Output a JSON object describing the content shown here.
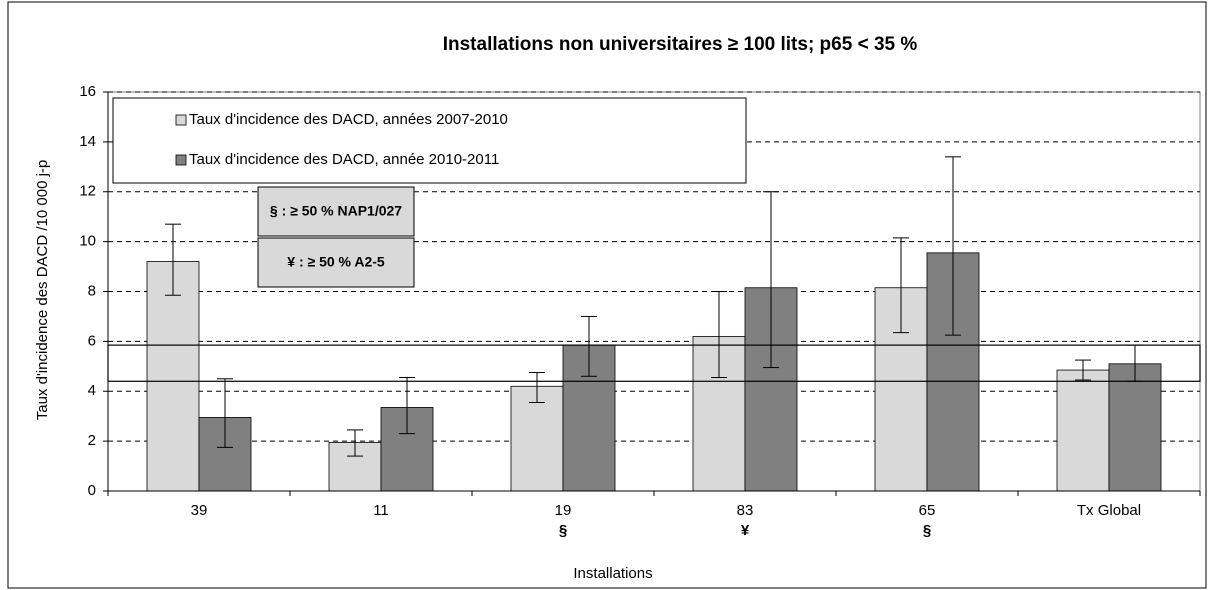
{
  "chart_data": {
    "type": "bar",
    "title": "Installations non universitaires ≥ 100 lits; p65 < 35 %",
    "x_label": "Installations",
    "y_label": "Taux d'incidence des DACD /10 000 j-p",
    "categories": [
      "39",
      "11",
      "19",
      "83",
      "65",
      "Tx Global"
    ],
    "category_notes": [
      null,
      null,
      "§",
      "¥",
      "§",
      null
    ],
    "series": [
      {
        "name": "Taux d'incidence des DACD, années 2007-2010",
        "color": "#d9d9d9",
        "values": [
          9.2,
          1.95,
          4.2,
          6.2,
          8.15,
          4.85
        ],
        "lower": [
          7.85,
          1.4,
          3.55,
          4.55,
          6.35,
          4.45
        ],
        "upper": [
          10.7,
          2.45,
          4.75,
          8.0,
          10.15,
          5.25
        ]
      },
      {
        "name": "Taux d'incidence des DACD, année 2010-2011",
        "color": "#808080",
        "values": [
          2.95,
          3.35,
          5.85,
          8.15,
          9.55,
          5.1
        ],
        "lower": [
          1.75,
          2.3,
          4.6,
          4.95,
          6.25,
          4.4
        ],
        "upper": [
          4.5,
          4.55,
          7.0,
          12.0,
          13.4,
          5.85
        ]
      }
    ],
    "annotations": [
      "§ : ≥ 50 % NAP1/027",
      "¥ : ≥ 50 % A2-5"
    ],
    "reference_band": [
      4.4,
      5.85
    ],
    "ylim": [
      0,
      16
    ],
    "yticks": [
      0,
      2,
      4,
      6,
      8,
      10,
      12,
      14,
      16
    ],
    "grid": true
  }
}
